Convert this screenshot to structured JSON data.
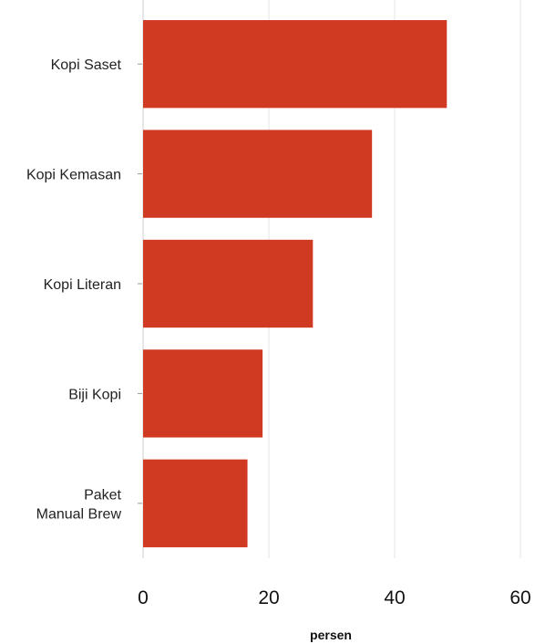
{
  "chart_data": {
    "type": "bar",
    "orientation": "horizontal",
    "categories": [
      "Kopi Saset",
      "Kopi Kemasan",
      "Kopi Literan",
      "Biji Kopi",
      "Paket\nManual Brew"
    ],
    "values": [
      48.3,
      36.4,
      27.0,
      19.0,
      16.6
    ],
    "xlabel": "persen",
    "ylabel": "",
    "xlim": [
      0,
      60
    ],
    "xticks": [
      "0",
      "20",
      "40",
      "60"
    ],
    "grid": "vertical",
    "bar_color": "#d03a22"
  }
}
